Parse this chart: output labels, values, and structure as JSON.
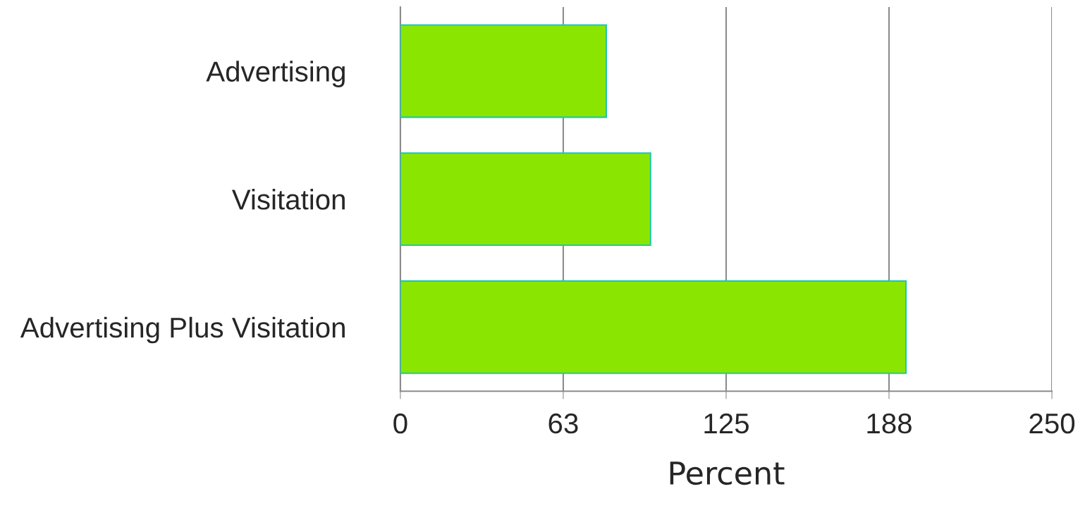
{
  "chart_data": {
    "type": "bar",
    "orientation": "horizontal",
    "xlabel": "Percent",
    "categories": [
      "Advertising",
      "Visitation",
      "Advertising Plus Visitation"
    ],
    "values": [
      79,
      96,
      194
    ],
    "color": "#8ae600",
    "xlim": [
      0,
      250
    ],
    "xticks": [
      0,
      {
        "value": 62.5,
        "label": "63"
      },
      125,
      {
        "value": 187.5,
        "label": "188"
      },
      250
    ],
    "grid": "x"
  }
}
